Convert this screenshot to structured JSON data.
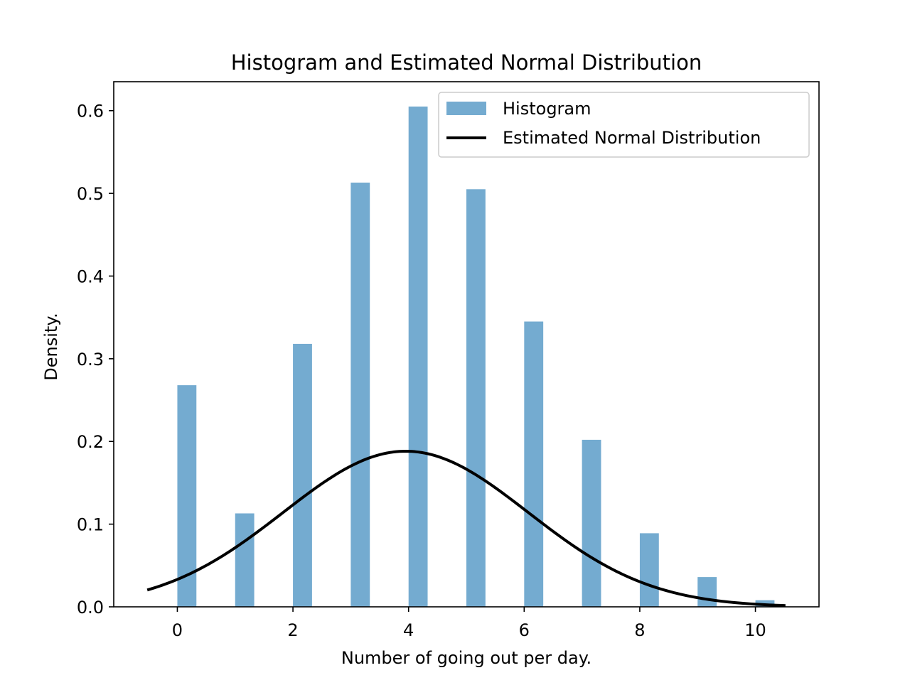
{
  "chart_data": {
    "type": "bar",
    "title": "Histogram and Estimated Normal Distribution",
    "xlabel": "Number of going out per day.",
    "ylabel": "Density.",
    "xlim": [
      -1.1,
      11.1
    ],
    "ylim": [
      0.0,
      0.635
    ],
    "x_ticks": [
      0,
      2,
      4,
      6,
      8,
      10
    ],
    "y_ticks": [
      0.0,
      0.1,
      0.2,
      0.3,
      0.4,
      0.5,
      0.6
    ],
    "x_tick_labels": [
      "0",
      "2",
      "4",
      "6",
      "8",
      "10"
    ],
    "y_tick_labels": [
      "0.0",
      "0.1",
      "0.2",
      "0.3",
      "0.4",
      "0.5",
      "0.6"
    ],
    "grid": false,
    "legend_position": "top-right",
    "series": [
      {
        "name": "Histogram",
        "type": "bar",
        "color": "#74abd0",
        "bin_left": [
          0,
          1,
          2,
          3,
          4,
          5,
          6,
          7,
          8,
          9,
          10
        ],
        "bin_width": 0.33,
        "values": [
          0.268,
          0.113,
          0.318,
          0.513,
          0.605,
          0.505,
          0.345,
          0.202,
          0.089,
          0.036,
          0.008
        ]
      },
      {
        "name": "Estimated Normal Distribution",
        "type": "line",
        "color": "#000000",
        "mean": 3.95,
        "std": 2.12,
        "x_range": [
          -0.52,
          10.52
        ]
      }
    ]
  }
}
